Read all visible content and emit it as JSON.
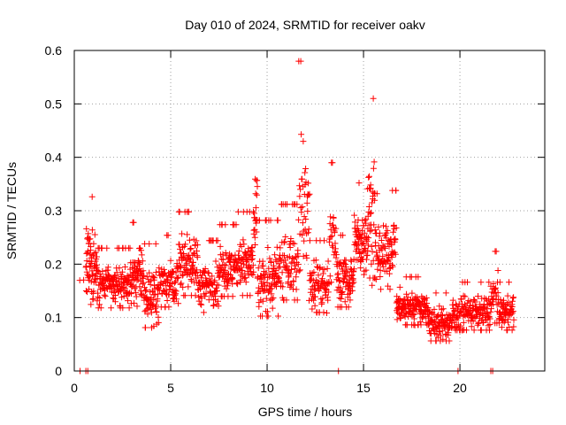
{
  "chart_data": {
    "type": "scatter",
    "title": "Day 010 of 2024, SRMTID for receiver oakv",
    "xlabel": "GPS time / hours",
    "ylabel": "SRMTID / TECUs",
    "xlim": [
      0,
      24.4
    ],
    "ylim": [
      0,
      0.6
    ],
    "grid": true,
    "x_ticks": [
      0,
      5,
      10,
      15,
      20
    ],
    "x_tick_labels": [
      "0",
      "5",
      "10",
      "15",
      "20"
    ],
    "y_ticks": [
      0,
      0.1,
      0.2,
      0.3,
      0.4,
      0.5,
      0.6
    ],
    "y_tick_labels": [
      "0",
      "0.1",
      "0.2",
      "0.3",
      "0.4",
      "0.5",
      "0.6"
    ],
    "marker": "+",
    "color": "#ff0000",
    "series": [
      {
        "name": "SRMTID",
        "segments": [
          {
            "x0": 0.0,
            "x1": 0.6,
            "base": 0.17,
            "spread": 0.005,
            "count": 2
          },
          {
            "x0": 0.6,
            "x1": 1.2,
            "base": 0.2,
            "spread": 0.09,
            "count": 70
          },
          {
            "x0": 1.2,
            "x1": 2.0,
            "base": 0.16,
            "spread": 0.05,
            "count": 70
          },
          {
            "x0": 2.0,
            "x1": 3.0,
            "base": 0.16,
            "spread": 0.05,
            "count": 90
          },
          {
            "x0": 3.0,
            "x1": 3.6,
            "base": 0.18,
            "spread": 0.07,
            "count": 60
          },
          {
            "x0": 3.6,
            "x1": 4.4,
            "base": 0.14,
            "spread": 0.07,
            "count": 70
          },
          {
            "x0": 4.4,
            "x1": 5.4,
            "base": 0.17,
            "spread": 0.06,
            "count": 80
          },
          {
            "x0": 5.4,
            "x1": 6.4,
            "base": 0.2,
            "spread": 0.07,
            "count": 90
          },
          {
            "x0": 6.4,
            "x1": 7.5,
            "base": 0.16,
            "spread": 0.06,
            "count": 90
          },
          {
            "x0": 7.5,
            "x1": 8.5,
            "base": 0.19,
            "spread": 0.06,
            "count": 90
          },
          {
            "x0": 8.5,
            "x1": 9.3,
            "base": 0.2,
            "spread": 0.07,
            "count": 70
          },
          {
            "x0": 9.3,
            "x1": 9.5,
            "base": 0.3,
            "spread": 0.13,
            "count": 20
          },
          {
            "x0": 9.5,
            "x1": 10.6,
            "base": 0.17,
            "spread": 0.08,
            "count": 100
          },
          {
            "x0": 10.6,
            "x1": 11.6,
            "base": 0.2,
            "spread": 0.08,
            "count": 80
          },
          {
            "x0": 11.6,
            "x1": 12.2,
            "base": 0.3,
            "spread": 0.2,
            "count": 45
          },
          {
            "x0": 12.2,
            "x1": 13.2,
            "base": 0.16,
            "spread": 0.06,
            "count": 80
          },
          {
            "x0": 13.2,
            "x1": 13.6,
            "base": 0.25,
            "spread": 0.1,
            "count": 30
          },
          {
            "x0": 13.6,
            "x1": 14.5,
            "base": 0.17,
            "spread": 0.06,
            "count": 80
          },
          {
            "x0": 14.5,
            "x1": 15.2,
            "base": 0.24,
            "spread": 0.08,
            "count": 70
          },
          {
            "x0": 15.2,
            "x1": 15.6,
            "base": 0.3,
            "spread": 0.15,
            "count": 40
          },
          {
            "x0": 15.6,
            "x1": 16.4,
            "base": 0.22,
            "spread": 0.08,
            "count": 70
          },
          {
            "x0": 16.4,
            "x1": 16.7,
            "base": 0.24,
            "spread": 0.07,
            "count": 25
          },
          {
            "x0": 16.7,
            "x1": 17.6,
            "base": 0.12,
            "spread": 0.04,
            "count": 80
          },
          {
            "x0": 17.6,
            "x1": 18.4,
            "base": 0.12,
            "spread": 0.04,
            "count": 70
          },
          {
            "x0": 18.4,
            "x1": 19.6,
            "base": 0.09,
            "spread": 0.04,
            "count": 100
          },
          {
            "x0": 19.6,
            "x1": 20.6,
            "base": 0.11,
            "spread": 0.04,
            "count": 80
          },
          {
            "x0": 20.6,
            "x1": 21.6,
            "base": 0.11,
            "spread": 0.04,
            "count": 80
          },
          {
            "x0": 21.6,
            "x1": 22.0,
            "base": 0.14,
            "spread": 0.06,
            "count": 30
          },
          {
            "x0": 22.0,
            "x1": 22.8,
            "base": 0.11,
            "spread": 0.04,
            "count": 70
          }
        ],
        "zero_points": [
          0.3,
          0.6,
          0.7,
          13.7,
          19.9,
          21.6,
          21.7
        ]
      }
    ]
  }
}
